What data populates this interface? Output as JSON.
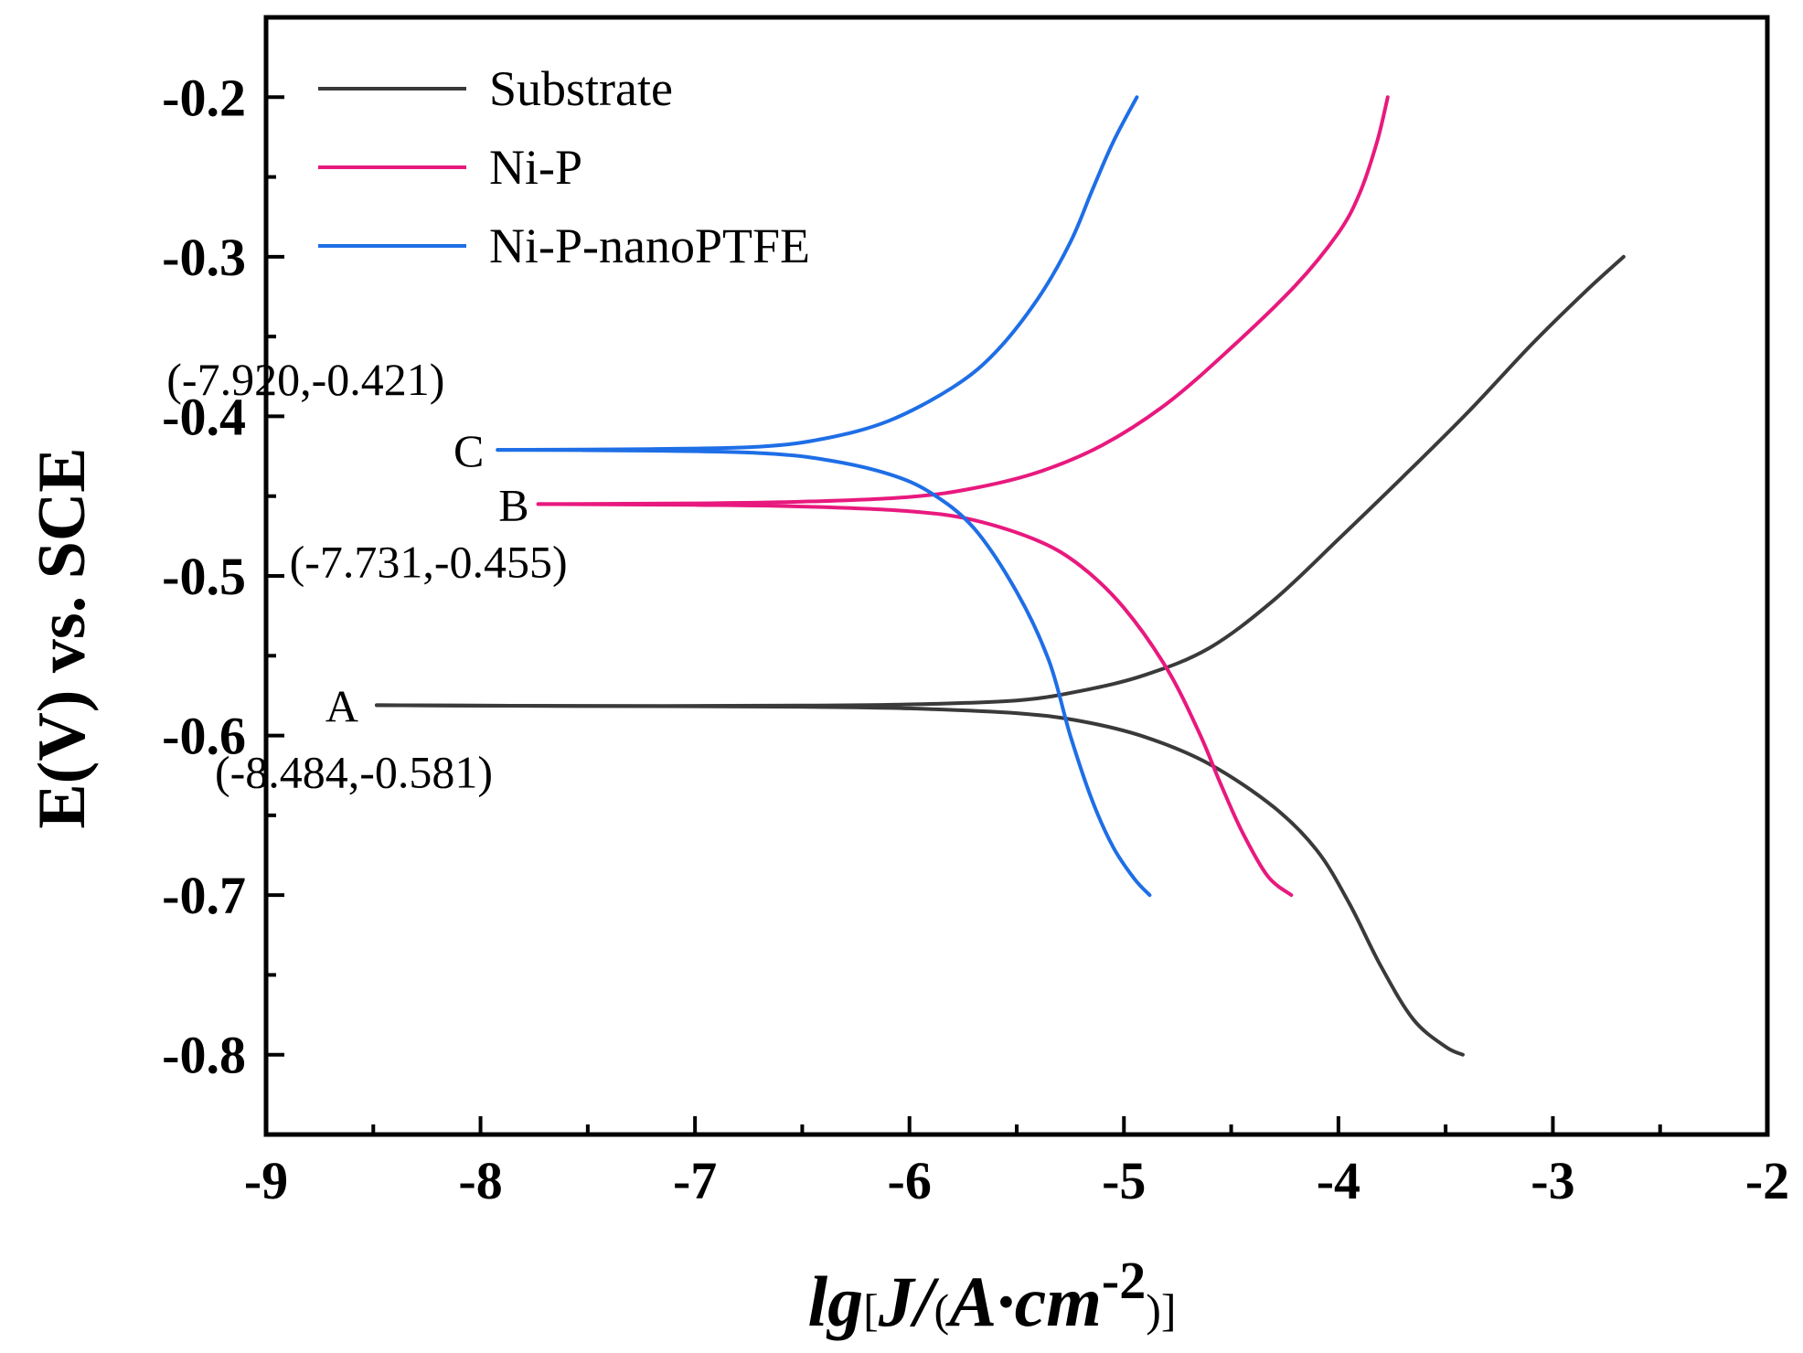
{
  "chart_data": {
    "type": "line",
    "title": "",
    "xlabel": "lg[J/(A·cm-2)]",
    "xlabel_parts": {
      "prefix": "lg",
      "bracket_open": "[",
      "J": "J",
      "slash": "/",
      "paren_open": "(",
      "unit": "A·cm",
      "exponent": "-2",
      "paren_close": ")",
      "bracket_close": "]"
    },
    "ylabel": "E(V) vs. SCE",
    "xlim": [
      -9,
      -2
    ],
    "ylim": [
      -0.85,
      -0.15
    ],
    "x_ticks": [
      -9,
      -8,
      -7,
      -6,
      -5,
      -4,
      -3,
      -2
    ],
    "x_tick_labels": [
      "-9",
      "-8",
      "-7",
      "-6",
      "-5",
      "-4",
      "-3",
      "-2"
    ],
    "y_ticks": [
      -0.8,
      -0.7,
      -0.6,
      -0.5,
      -0.4,
      -0.3,
      -0.2
    ],
    "y_tick_labels": [
      "-0.8",
      "-0.7",
      "-0.6",
      "-0.5",
      "-0.4",
      "-0.3",
      "-0.2"
    ],
    "grid": false,
    "legend_position": "top-left",
    "series": [
      {
        "name": "Substrate",
        "color": "#3a3a3a",
        "anodic": [
          [
            -8.484,
            -0.581
          ],
          [
            -7.5,
            -0.5815
          ],
          [
            -6.5,
            -0.5812
          ],
          [
            -6.0,
            -0.5805
          ],
          [
            -5.5,
            -0.578
          ],
          [
            -5.2,
            -0.572
          ],
          [
            -4.9,
            -0.562
          ],
          [
            -4.6,
            -0.545
          ],
          [
            -4.3,
            -0.515
          ],
          [
            -4.0,
            -0.477
          ],
          [
            -3.7,
            -0.438
          ],
          [
            -3.4,
            -0.398
          ],
          [
            -3.1,
            -0.355
          ],
          [
            -2.85,
            -0.322
          ],
          [
            -2.67,
            -0.3
          ]
        ],
        "cathodic": [
          [
            -8.484,
            -0.581
          ],
          [
            -7.5,
            -0.5815
          ],
          [
            -6.5,
            -0.582
          ],
          [
            -6.0,
            -0.583
          ],
          [
            -5.5,
            -0.586
          ],
          [
            -5.2,
            -0.591
          ],
          [
            -4.9,
            -0.601
          ],
          [
            -4.6,
            -0.618
          ],
          [
            -4.3,
            -0.645
          ],
          [
            -4.1,
            -0.672
          ],
          [
            -3.95,
            -0.705
          ],
          [
            -3.8,
            -0.745
          ],
          [
            -3.65,
            -0.778
          ],
          [
            -3.5,
            -0.795
          ],
          [
            -3.42,
            -0.8
          ]
        ]
      },
      {
        "name": "Ni-P",
        "color": "#e8197e",
        "anodic": [
          [
            -7.731,
            -0.455
          ],
          [
            -7.0,
            -0.4545
          ],
          [
            -6.5,
            -0.4535
          ],
          [
            -6.0,
            -0.4505
          ],
          [
            -5.7,
            -0.445
          ],
          [
            -5.4,
            -0.435
          ],
          [
            -5.1,
            -0.418
          ],
          [
            -4.8,
            -0.392
          ],
          [
            -4.5,
            -0.357
          ],
          [
            -4.2,
            -0.318
          ],
          [
            -4.0,
            -0.285
          ],
          [
            -3.9,
            -0.26
          ],
          [
            -3.82,
            -0.228
          ],
          [
            -3.77,
            -0.2
          ]
        ],
        "cathodic": [
          [
            -7.731,
            -0.455
          ],
          [
            -7.0,
            -0.4555
          ],
          [
            -6.5,
            -0.4565
          ],
          [
            -6.0,
            -0.4595
          ],
          [
            -5.7,
            -0.465
          ],
          [
            -5.4,
            -0.478
          ],
          [
            -5.2,
            -0.494
          ],
          [
            -5.0,
            -0.52
          ],
          [
            -4.8,
            -0.558
          ],
          [
            -4.65,
            -0.598
          ],
          [
            -4.55,
            -0.63
          ],
          [
            -4.45,
            -0.66
          ],
          [
            -4.33,
            -0.688
          ],
          [
            -4.22,
            -0.7
          ]
        ]
      },
      {
        "name": "Ni-P-nanoPTFE",
        "color": "#1e6ee6",
        "anodic": [
          [
            -7.92,
            -0.421
          ],
          [
            -7.2,
            -0.4205
          ],
          [
            -6.7,
            -0.419
          ],
          [
            -6.4,
            -0.414
          ],
          [
            -6.1,
            -0.403
          ],
          [
            -5.8,
            -0.382
          ],
          [
            -5.6,
            -0.36
          ],
          [
            -5.4,
            -0.326
          ],
          [
            -5.25,
            -0.291
          ],
          [
            -5.15,
            -0.259
          ],
          [
            -5.05,
            -0.228
          ],
          [
            -4.94,
            -0.2
          ]
        ],
        "cathodic": [
          [
            -7.92,
            -0.421
          ],
          [
            -7.2,
            -0.4215
          ],
          [
            -6.7,
            -0.423
          ],
          [
            -6.4,
            -0.427
          ],
          [
            -6.1,
            -0.436
          ],
          [
            -5.9,
            -0.448
          ],
          [
            -5.7,
            -0.47
          ],
          [
            -5.5,
            -0.51
          ],
          [
            -5.35,
            -0.553
          ],
          [
            -5.25,
            -0.6
          ],
          [
            -5.15,
            -0.64
          ],
          [
            -5.05,
            -0.67
          ],
          [
            -4.95,
            -0.69
          ],
          [
            -4.88,
            -0.7
          ]
        ]
      }
    ],
    "annotations": [
      {
        "label": "A",
        "coords": "(-8.484,-0.581)",
        "x": -8.484,
        "y": -0.581
      },
      {
        "label": "B",
        "coords": "(-7.731,-0.455)",
        "x": -7.731,
        "y": -0.455
      },
      {
        "label": "C",
        "coords": "(-7.920,-0.421)",
        "x": -7.92,
        "y": -0.421
      }
    ]
  }
}
